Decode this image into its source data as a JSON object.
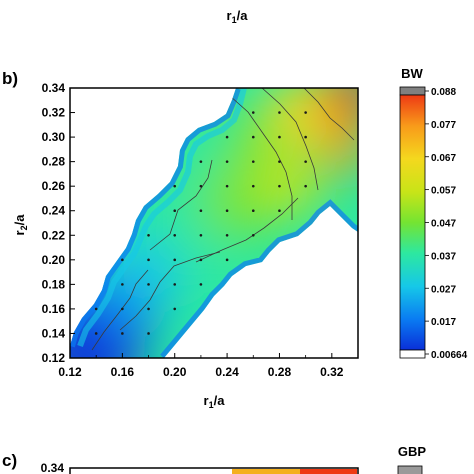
{
  "top_axis_label": {
    "main": "r",
    "sub": "1",
    "rest": "/a"
  },
  "panel_b": {
    "panel_label": "b)",
    "chart_data": {
      "type": "heatmap",
      "xlabel": "r1/a",
      "ylabel": "r2/a",
      "xlim": [
        0.12,
        0.34
      ],
      "ylim": [
        0.12,
        0.34
      ],
      "x_ticks": [
        "0.12",
        "0.16",
        "0.20",
        "0.24",
        "0.28",
        "0.32"
      ],
      "y_ticks": [
        "0.12",
        "0.14",
        "0.16",
        "0.18",
        "0.20",
        "0.22",
        "0.24",
        "0.26",
        "0.28",
        "0.30",
        "0.32",
        "0.34"
      ],
      "colorbar_title": "BW",
      "colorbar_ticks": [
        "0.088",
        "0.077",
        "0.067",
        "0.057",
        "0.047",
        "0.037",
        "0.027",
        "0.017",
        "0.00664"
      ],
      "contour_levels": [
        0.017,
        0.027,
        0.037,
        0.047,
        0.057,
        0.067,
        0.077
      ],
      "colormap": [
        "#0a2fd8",
        "#0a7bf2",
        "#16c8e8",
        "#2de8a0",
        "#74e432",
        "#c8e418",
        "#f4d81e",
        "#f89a1a",
        "#ee3a14"
      ],
      "overflow_color": "#808080",
      "underflow_color": "#ffffff",
      "points_note": "sample grid of r1/a, r2/a pairs",
      "sample_points": [
        [
          0.14,
          0.14
        ],
        [
          0.16,
          0.14
        ],
        [
          0.18,
          0.14
        ],
        [
          0.14,
          0.16
        ],
        [
          0.16,
          0.16
        ],
        [
          0.18,
          0.16
        ],
        [
          0.2,
          0.16
        ],
        [
          0.16,
          0.18
        ],
        [
          0.18,
          0.18
        ],
        [
          0.2,
          0.18
        ],
        [
          0.22,
          0.18
        ],
        [
          0.16,
          0.2
        ],
        [
          0.18,
          0.2
        ],
        [
          0.2,
          0.2
        ],
        [
          0.22,
          0.2
        ],
        [
          0.24,
          0.2
        ],
        [
          0.18,
          0.22
        ],
        [
          0.2,
          0.22
        ],
        [
          0.22,
          0.22
        ],
        [
          0.24,
          0.22
        ],
        [
          0.26,
          0.22
        ],
        [
          0.2,
          0.24
        ],
        [
          0.22,
          0.24
        ],
        [
          0.24,
          0.24
        ],
        [
          0.26,
          0.24
        ],
        [
          0.28,
          0.24
        ],
        [
          0.2,
          0.26
        ],
        [
          0.22,
          0.26
        ],
        [
          0.24,
          0.26
        ],
        [
          0.26,
          0.26
        ],
        [
          0.28,
          0.26
        ],
        [
          0.3,
          0.26
        ],
        [
          0.22,
          0.28
        ],
        [
          0.24,
          0.28
        ],
        [
          0.26,
          0.28
        ],
        [
          0.28,
          0.28
        ],
        [
          0.3,
          0.28
        ],
        [
          0.24,
          0.3
        ],
        [
          0.26,
          0.3
        ],
        [
          0.28,
          0.3
        ],
        [
          0.3,
          0.3
        ],
        [
          0.26,
          0.32
        ],
        [
          0.28,
          0.32
        ],
        [
          0.3,
          0.32
        ]
      ]
    }
  },
  "panel_c": {
    "panel_label": "c)",
    "y_tick_top": "0.34",
    "legend_title": "GBP"
  }
}
